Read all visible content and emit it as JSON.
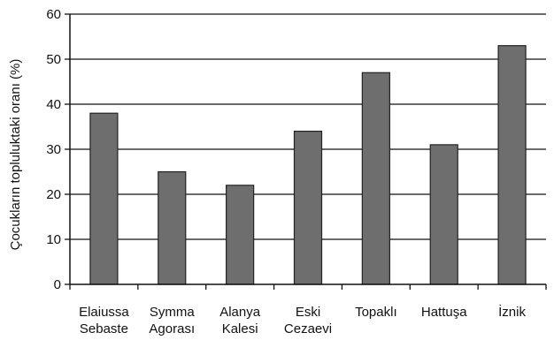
{
  "chart_data": {
    "type": "bar",
    "title": "",
    "xlabel": "",
    "ylabel": "Çocukların topluluktaki oranı (%)",
    "ylim": [
      0,
      60
    ],
    "yticks": [
      0,
      10,
      20,
      30,
      40,
      50,
      60
    ],
    "grid": true,
    "legend": "none",
    "categories": [
      [
        "Elaiussa",
        "Sebaste"
      ],
      [
        "Symma",
        "Agorası"
      ],
      [
        "Alanya",
        "Kalesi"
      ],
      [
        "Eski",
        "Cezaevi"
      ],
      [
        "Topaklı"
      ],
      [
        "Hattuşa"
      ],
      [
        "İznik"
      ]
    ],
    "values": [
      38,
      25,
      22,
      34,
      47,
      31,
      53
    ],
    "colors": {
      "bar_fill": "#6e6e6e",
      "bar_stroke": "#222222",
      "grid": "#111111",
      "axis": "#111111",
      "text": "#111111"
    }
  }
}
